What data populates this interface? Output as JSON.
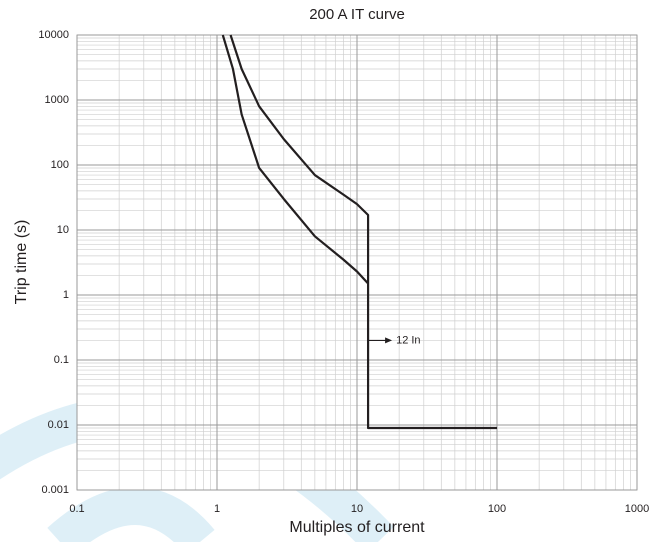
{
  "chart_data": {
    "type": "line",
    "title": "200 A IT curve",
    "x_label": "Multiples of current",
    "y_label": "Trip time (s)",
    "xscale": "log",
    "yscale": "log",
    "xlim": [
      0.1,
      1000
    ],
    "ylim": [
      0.001,
      10000
    ],
    "xticks": [
      0.1,
      1,
      10,
      100,
      1000
    ],
    "yticks": [
      0.001,
      0.01,
      0.1,
      1,
      10,
      100,
      1000,
      10000
    ],
    "grid": true,
    "minor_grid": true,
    "series": [
      {
        "color": "#231f20",
        "x": [
          1.25,
          1.5,
          2,
          3,
          5,
          8,
          10,
          12,
          12,
          100
        ],
        "values": [
          10000,
          3000,
          800,
          250,
          70,
          35,
          25,
          17,
          0.009,
          0.009
        ]
      },
      {
        "color": "#231f20",
        "x": [
          1.1,
          1.3,
          1.5,
          2,
          3,
          5,
          8,
          10,
          12
        ],
        "values": [
          10000,
          3000,
          600,
          90,
          30,
          8,
          3.5,
          2.3,
          1.5
        ]
      }
    ],
    "annotations": [
      {
        "text": "12 In",
        "x": 12,
        "y": 0.2
      }
    ]
  }
}
